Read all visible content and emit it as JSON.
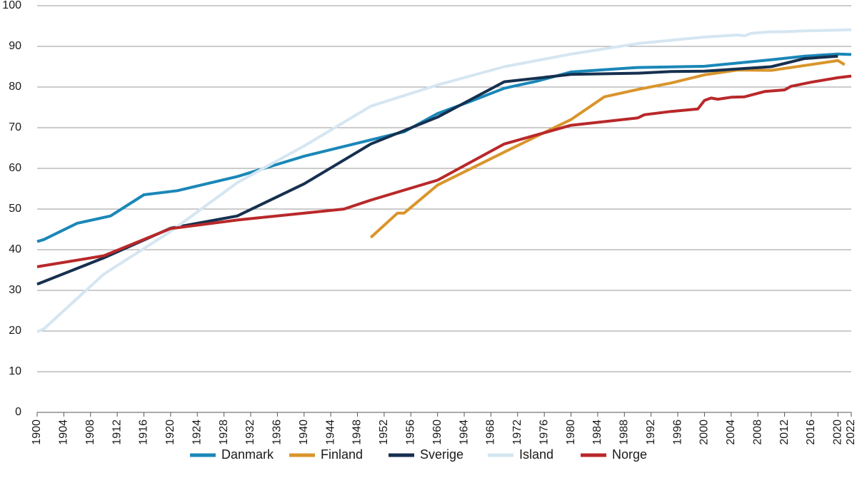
{
  "chart_data": {
    "type": "line",
    "ylim": [
      0,
      100
    ],
    "yticks": [
      0,
      10,
      20,
      30,
      40,
      50,
      60,
      70,
      80,
      90,
      100
    ],
    "xlim": [
      1900,
      2022
    ],
    "xticks": [
      1900,
      1904,
      1908,
      1912,
      1916,
      1920,
      1924,
      1928,
      1932,
      1936,
      1940,
      1944,
      1948,
      1952,
      1956,
      1960,
      1964,
      1968,
      1972,
      1976,
      1980,
      1984,
      1988,
      1992,
      1996,
      2000,
      2004,
      2008,
      2012,
      2016,
      2020,
      2022
    ],
    "grid": true,
    "legend": "bottom",
    "series": [
      {
        "name": "Danmark",
        "color": "#1a87b8",
        "x": [
          1900,
          1901,
          1906,
          1911,
          1916,
          1921,
          1930,
          1940,
          1950,
          1955,
          1960,
          1965,
          1970,
          1975,
          1980,
          1990,
          2000,
          2010,
          2015,
          2020,
          2022
        ],
        "values": [
          42,
          42.5,
          46.5,
          48.3,
          53.5,
          54.5,
          58,
          63,
          67,
          69,
          73.5,
          76.5,
          79.7,
          81.5,
          83.7,
          84.8,
          85.1,
          86.7,
          87.6,
          88.1,
          88
        ]
      },
      {
        "name": "Finland",
        "color": "#d9952b",
        "x": [
          1950,
          1954,
          1955,
          1960,
          1970,
          1980,
          1985,
          1990,
          1995,
          2000,
          2005,
          2010,
          2015,
          2020,
          2021
        ],
        "values": [
          43,
          49,
          49,
          55.9,
          64,
          72,
          77.6,
          79.4,
          81,
          83,
          84.2,
          84.1,
          85.3,
          86.5,
          85.5
        ]
      },
      {
        "name": "Sverige",
        "color": "#16304f",
        "x": [
          1900,
          1910,
          1920,
          1930,
          1940,
          1950,
          1960,
          1970,
          1980,
          1990,
          1995,
          2000,
          2010,
          2015,
          2020
        ],
        "values": [
          31.5,
          38,
          45.3,
          48.3,
          56.2,
          66,
          72.6,
          81.3,
          83.1,
          83.4,
          83.8,
          83.9,
          85,
          87,
          87.6
        ]
      },
      {
        "name": "Island",
        "color": "#d5e6f2",
        "x": [
          1900,
          1901,
          1910,
          1920,
          1930,
          1940,
          1950,
          1960,
          1970,
          1980,
          1990,
          2000,
          2005,
          2006,
          2007,
          2010,
          2012,
          2015,
          2020,
          2022
        ],
        "values": [
          19.8,
          20.5,
          34,
          44.5,
          56.5,
          65.5,
          75.3,
          80.5,
          85,
          88.1,
          90.7,
          92.3,
          92.8,
          92.6,
          93.2,
          93.6,
          93.6,
          93.8,
          94,
          94.1
        ]
      },
      {
        "name": "Norge",
        "color": "#b9282a",
        "x": [
          1900,
          1910,
          1920,
          1930,
          1946,
          1950,
          1960,
          1970,
          1980,
          1990,
          1991,
          1995,
          1999,
          2000,
          2001,
          2002,
          2004,
          2006,
          2009,
          2012,
          2013,
          2016,
          2020,
          2022
        ],
        "values": [
          35.8,
          38.5,
          45.2,
          47.3,
          50,
          52.2,
          57.1,
          66,
          70.6,
          72.4,
          73.2,
          74,
          74.6,
          76.7,
          77.3,
          77,
          77.5,
          77.6,
          78.9,
          79.3,
          80.2,
          81.2,
          82.3,
          82.7
        ]
      }
    ]
  }
}
